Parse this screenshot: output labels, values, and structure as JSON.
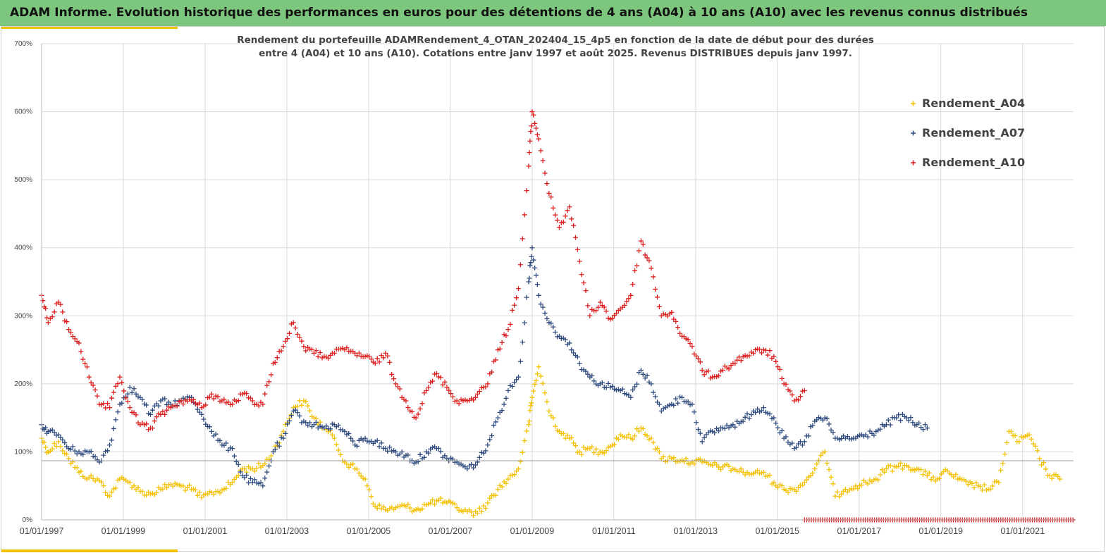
{
  "banner": {
    "title": "ADAM Informe. Evolution historique des performances en euros pour des détentions de 4 ans (A04) à 10 ans (A10) avec les revenus connus distribués"
  },
  "colors": {
    "A04": "#f5c000",
    "A07": "#2e4a7e",
    "A10": "#dc1e1e",
    "banner": "#7dc67d",
    "accent": "#f2c200"
  },
  "chart_data": {
    "type": "scatter",
    "title": "Rendement du portefeuille ADAMRendement_4_OTAN_202404_15_4p5  en fonction de la date de début pour des durées",
    "subtitle": "entre 4 (A04) et 10 ans (A10). Cotations entre janv 1997 et août 2025. Revenus DISTRIBUES depuis janv 1997.",
    "xlabel": "",
    "ylabel": "",
    "x_range": [
      "1997-01-01",
      "2022-04-01"
    ],
    "ylim": [
      0,
      700
    ],
    "x_ticks": [
      "01/01/1997",
      "01/01/1999",
      "01/01/2001",
      "01/01/2003",
      "01/01/2005",
      "01/01/2007",
      "01/01/2009",
      "01/01/2011",
      "01/01/2013",
      "01/01/2015",
      "01/01/2017",
      "01/01/2019",
      "01/01/2021"
    ],
    "y_ticks": [
      "0%",
      "100%",
      "200%",
      "300%",
      "400%",
      "500%",
      "600%",
      "700%"
    ],
    "y_tick_values": [
      0,
      100,
      200,
      300,
      400,
      500,
      600,
      700
    ],
    "grid": true,
    "legend_position": "top-right",
    "marker": "+",
    "reference_line": 87,
    "series": [
      {
        "name": "Rendement_A04",
        "color": "#f5c000",
        "points": [
          [
            "1997-01-01",
            120
          ],
          [
            "1997-03-01",
            100
          ],
          [
            "1997-06-01",
            115
          ],
          [
            "1997-09-01",
            90
          ],
          [
            "1997-12-01",
            70
          ],
          [
            "1998-03-01",
            62
          ],
          [
            "1998-06-01",
            58
          ],
          [
            "1998-09-01",
            35
          ],
          [
            "1998-12-01",
            60
          ],
          [
            "1999-03-01",
            55
          ],
          [
            "1999-06-01",
            42
          ],
          [
            "1999-09-01",
            38
          ],
          [
            "1999-12-01",
            45
          ],
          [
            "2000-03-01",
            52
          ],
          [
            "2000-06-01",
            50
          ],
          [
            "2000-09-01",
            45
          ],
          [
            "2000-12-01",
            33
          ],
          [
            "2001-03-01",
            40
          ],
          [
            "2001-06-01",
            44
          ],
          [
            "2001-09-01",
            55
          ],
          [
            "2001-12-01",
            75
          ],
          [
            "2002-03-01",
            75
          ],
          [
            "2002-06-01",
            80
          ],
          [
            "2002-09-01",
            100
          ],
          [
            "2002-12-01",
            130
          ],
          [
            "2003-03-01",
            165
          ],
          [
            "2003-06-01",
            175
          ],
          [
            "2003-09-01",
            150
          ],
          [
            "2003-12-01",
            135
          ],
          [
            "2004-03-01",
            120
          ],
          [
            "2004-06-01",
            85
          ],
          [
            "2004-09-01",
            75
          ],
          [
            "2004-12-01",
            60
          ],
          [
            "2005-03-01",
            20
          ],
          [
            "2005-06-01",
            15
          ],
          [
            "2005-09-01",
            18
          ],
          [
            "2005-12-01",
            20
          ],
          [
            "2006-03-01",
            15
          ],
          [
            "2006-06-01",
            22
          ],
          [
            "2006-09-01",
            28
          ],
          [
            "2006-12-01",
            25
          ],
          [
            "2007-03-01",
            18
          ],
          [
            "2007-06-01",
            12
          ],
          [
            "2007-09-01",
            10
          ],
          [
            "2007-12-01",
            25
          ],
          [
            "2008-03-01",
            45
          ],
          [
            "2008-06-01",
            60
          ],
          [
            "2008-09-01",
            75
          ],
          [
            "2008-12-01",
            140
          ],
          [
            "2009-01-01",
            180
          ],
          [
            "2009-03-01",
            225
          ],
          [
            "2009-06-01",
            160
          ],
          [
            "2009-09-01",
            130
          ],
          [
            "2009-12-01",
            120
          ],
          [
            "2010-03-01",
            100
          ],
          [
            "2010-06-01",
            105
          ],
          [
            "2010-09-01",
            100
          ],
          [
            "2010-12-01",
            108
          ],
          [
            "2011-03-01",
            125
          ],
          [
            "2011-06-01",
            120
          ],
          [
            "2011-09-01",
            135
          ],
          [
            "2011-12-01",
            120
          ],
          [
            "2012-03-01",
            90
          ],
          [
            "2012-06-01",
            90
          ],
          [
            "2012-09-01",
            88
          ],
          [
            "2012-12-01",
            85
          ],
          [
            "2013-03-01",
            85
          ],
          [
            "2013-06-01",
            80
          ],
          [
            "2013-09-01",
            78
          ],
          [
            "2013-12-01",
            75
          ],
          [
            "2014-03-01",
            70
          ],
          [
            "2014-06-01",
            68
          ],
          [
            "2014-09-01",
            70
          ],
          [
            "2014-12-01",
            55
          ],
          [
            "2015-03-01",
            45
          ],
          [
            "2015-06-01",
            45
          ],
          [
            "2015-09-01",
            55
          ],
          [
            "2015-12-01",
            75
          ],
          [
            "2016-03-01",
            100
          ],
          [
            "2016-06-01",
            35
          ],
          [
            "2016-09-01",
            45
          ],
          [
            "2016-12-01",
            50
          ],
          [
            "2017-03-01",
            55
          ],
          [
            "2017-06-01",
            60
          ],
          [
            "2017-09-01",
            75
          ],
          [
            "2017-12-01",
            78
          ],
          [
            "2018-03-01",
            80
          ],
          [
            "2018-06-01",
            75
          ],
          [
            "2018-09-01",
            65
          ],
          [
            "2018-12-01",
            60
          ],
          [
            "2019-03-01",
            72
          ],
          [
            "2019-06-01",
            60
          ],
          [
            "2019-09-01",
            52
          ],
          [
            "2019-12-01",
            50
          ],
          [
            "2020-03-01",
            45
          ],
          [
            "2020-06-01",
            55
          ],
          [
            "2020-09-01",
            130
          ],
          [
            "2020-12-01",
            115
          ],
          [
            "2021-03-01",
            125
          ],
          [
            "2021-06-01",
            90
          ],
          [
            "2021-09-01",
            65
          ],
          [
            "2021-12-01",
            60
          ]
        ]
      },
      {
        "name": "Rendement_A07",
        "color": "#2e4a7e",
        "points": [
          [
            "1997-01-01",
            140
          ],
          [
            "1997-03-01",
            130
          ],
          [
            "1997-06-01",
            125
          ],
          [
            "1997-09-01",
            105
          ],
          [
            "1997-12-01",
            100
          ],
          [
            "1998-03-01",
            100
          ],
          [
            "1998-06-01",
            85
          ],
          [
            "1998-09-01",
            110
          ],
          [
            "1998-12-01",
            170
          ],
          [
            "1999-03-01",
            195
          ],
          [
            "1999-06-01",
            180
          ],
          [
            "1999-09-01",
            155
          ],
          [
            "1999-12-01",
            175
          ],
          [
            "2000-03-01",
            170
          ],
          [
            "2000-06-01",
            175
          ],
          [
            "2000-09-01",
            180
          ],
          [
            "2000-12-01",
            155
          ],
          [
            "2001-03-01",
            130
          ],
          [
            "2001-06-01",
            110
          ],
          [
            "2001-09-01",
            105
          ],
          [
            "2001-12-01",
            65
          ],
          [
            "2002-03-01",
            55
          ],
          [
            "2002-06-01",
            50
          ],
          [
            "2002-09-01",
            100
          ],
          [
            "2002-12-01",
            120
          ],
          [
            "2003-03-01",
            160
          ],
          [
            "2003-06-01",
            145
          ],
          [
            "2003-09-01",
            140
          ],
          [
            "2003-12-01",
            135
          ],
          [
            "2004-03-01",
            140
          ],
          [
            "2004-06-01",
            130
          ],
          [
            "2004-09-01",
            110
          ],
          [
            "2004-12-01",
            120
          ],
          [
            "2005-03-01",
            115
          ],
          [
            "2005-06-01",
            105
          ],
          [
            "2005-09-01",
            100
          ],
          [
            "2005-12-01",
            95
          ],
          [
            "2006-03-01",
            85
          ],
          [
            "2006-06-01",
            100
          ],
          [
            "2006-09-01",
            105
          ],
          [
            "2006-12-01",
            90
          ],
          [
            "2007-03-01",
            85
          ],
          [
            "2007-06-01",
            75
          ],
          [
            "2007-09-01",
            85
          ],
          [
            "2007-12-01",
            110
          ],
          [
            "2008-03-01",
            150
          ],
          [
            "2008-06-01",
            190
          ],
          [
            "2008-09-01",
            210
          ],
          [
            "2008-12-01",
            350
          ],
          [
            "2009-01-01",
            400
          ],
          [
            "2009-03-01",
            330
          ],
          [
            "2009-06-01",
            290
          ],
          [
            "2009-09-01",
            270
          ],
          [
            "2009-12-01",
            260
          ],
          [
            "2010-03-01",
            230
          ],
          [
            "2010-06-01",
            210
          ],
          [
            "2010-09-01",
            200
          ],
          [
            "2010-12-01",
            195
          ],
          [
            "2011-03-01",
            190
          ],
          [
            "2011-06-01",
            180
          ],
          [
            "2011-09-01",
            220
          ],
          [
            "2011-12-01",
            200
          ],
          [
            "2012-03-01",
            160
          ],
          [
            "2012-06-01",
            170
          ],
          [
            "2012-09-01",
            180
          ],
          [
            "2012-12-01",
            170
          ],
          [
            "2013-03-01",
            115
          ],
          [
            "2013-06-01",
            130
          ],
          [
            "2013-09-01",
            135
          ],
          [
            "2013-12-01",
            140
          ],
          [
            "2014-03-01",
            145
          ],
          [
            "2014-06-01",
            160
          ],
          [
            "2014-09-01",
            165
          ],
          [
            "2014-12-01",
            150
          ],
          [
            "2015-03-01",
            120
          ],
          [
            "2015-06-01",
            105
          ],
          [
            "2015-09-01",
            115
          ],
          [
            "2015-12-01",
            145
          ],
          [
            "2016-03-01",
            150
          ],
          [
            "2016-06-01",
            120
          ],
          [
            "2016-09-01",
            120
          ],
          [
            "2016-12-01",
            120
          ],
          [
            "2017-03-01",
            125
          ],
          [
            "2017-06-01",
            130
          ],
          [
            "2017-09-01",
            140
          ],
          [
            "2017-12-01",
            150
          ],
          [
            "2018-03-01",
            150
          ],
          [
            "2018-06-01",
            140
          ],
          [
            "2018-09-01",
            135
          ]
        ]
      },
      {
        "name": "Rendement_A10",
        "color": "#dc1e1e",
        "points": [
          [
            "1997-01-01",
            330
          ],
          [
            "1997-03-01",
            290
          ],
          [
            "1997-06-01",
            320
          ],
          [
            "1997-09-01",
            280
          ],
          [
            "1997-12-01",
            260
          ],
          [
            "1998-03-01",
            210
          ],
          [
            "1998-06-01",
            170
          ],
          [
            "1998-09-01",
            165
          ],
          [
            "1998-12-01",
            210
          ],
          [
            "1999-03-01",
            165
          ],
          [
            "1999-06-01",
            140
          ],
          [
            "1999-09-01",
            135
          ],
          [
            "1999-12-01",
            155
          ],
          [
            "2000-03-01",
            165
          ],
          [
            "2000-06-01",
            175
          ],
          [
            "2000-09-01",
            175
          ],
          [
            "2000-12-01",
            165
          ],
          [
            "2001-03-01",
            185
          ],
          [
            "2001-06-01",
            175
          ],
          [
            "2001-09-01",
            170
          ],
          [
            "2001-12-01",
            185
          ],
          [
            "2002-03-01",
            175
          ],
          [
            "2002-06-01",
            170
          ],
          [
            "2002-09-01",
            230
          ],
          [
            "2002-12-01",
            255
          ],
          [
            "2003-03-01",
            290
          ],
          [
            "2003-06-01",
            255
          ],
          [
            "2003-09-01",
            245
          ],
          [
            "2003-12-01",
            240
          ],
          [
            "2004-03-01",
            245
          ],
          [
            "2004-06-01",
            250
          ],
          [
            "2004-09-01",
            245
          ],
          [
            "2004-12-01",
            240
          ],
          [
            "2005-03-01",
            230
          ],
          [
            "2005-06-01",
            245
          ],
          [
            "2005-09-01",
            200
          ],
          [
            "2005-12-01",
            175
          ],
          [
            "2006-03-01",
            150
          ],
          [
            "2006-06-01",
            190
          ],
          [
            "2006-09-01",
            215
          ],
          [
            "2006-12-01",
            195
          ],
          [
            "2007-03-01",
            175
          ],
          [
            "2007-06-01",
            175
          ],
          [
            "2007-09-01",
            185
          ],
          [
            "2007-12-01",
            200
          ],
          [
            "2008-03-01",
            250
          ],
          [
            "2008-06-01",
            280
          ],
          [
            "2008-09-01",
            340
          ],
          [
            "2008-12-01",
            520
          ],
          [
            "2009-01-01",
            600
          ],
          [
            "2009-03-01",
            560
          ],
          [
            "2009-06-01",
            480
          ],
          [
            "2009-09-01",
            430
          ],
          [
            "2009-12-01",
            460
          ],
          [
            "2010-03-01",
            380
          ],
          [
            "2010-06-01",
            300
          ],
          [
            "2010-09-01",
            320
          ],
          [
            "2010-12-01",
            295
          ],
          [
            "2011-03-01",
            310
          ],
          [
            "2011-06-01",
            330
          ],
          [
            "2011-09-01",
            410
          ],
          [
            "2011-12-01",
            370
          ],
          [
            "2012-03-01",
            300
          ],
          [
            "2012-06-01",
            305
          ],
          [
            "2012-09-01",
            270
          ],
          [
            "2012-12-01",
            255
          ],
          [
            "2013-03-01",
            220
          ],
          [
            "2013-06-01",
            210
          ],
          [
            "2013-09-01",
            220
          ],
          [
            "2013-12-01",
            230
          ],
          [
            "2014-03-01",
            240
          ],
          [
            "2014-06-01",
            245
          ],
          [
            "2014-09-01",
            250
          ],
          [
            "2014-12-01",
            240
          ],
          [
            "2015-03-01",
            200
          ],
          [
            "2015-06-01",
            175
          ],
          [
            "2015-09-01",
            190
          ]
        ]
      },
      {
        "name": "",
        "color": "#dc1e1e",
        "flat_value": 0,
        "x_from": "2015-09-01",
        "x_to": "2022-04-01"
      }
    ],
    "legend": [
      "Rendement_A04",
      "Rendement_A07",
      "Rendement_A10"
    ]
  }
}
